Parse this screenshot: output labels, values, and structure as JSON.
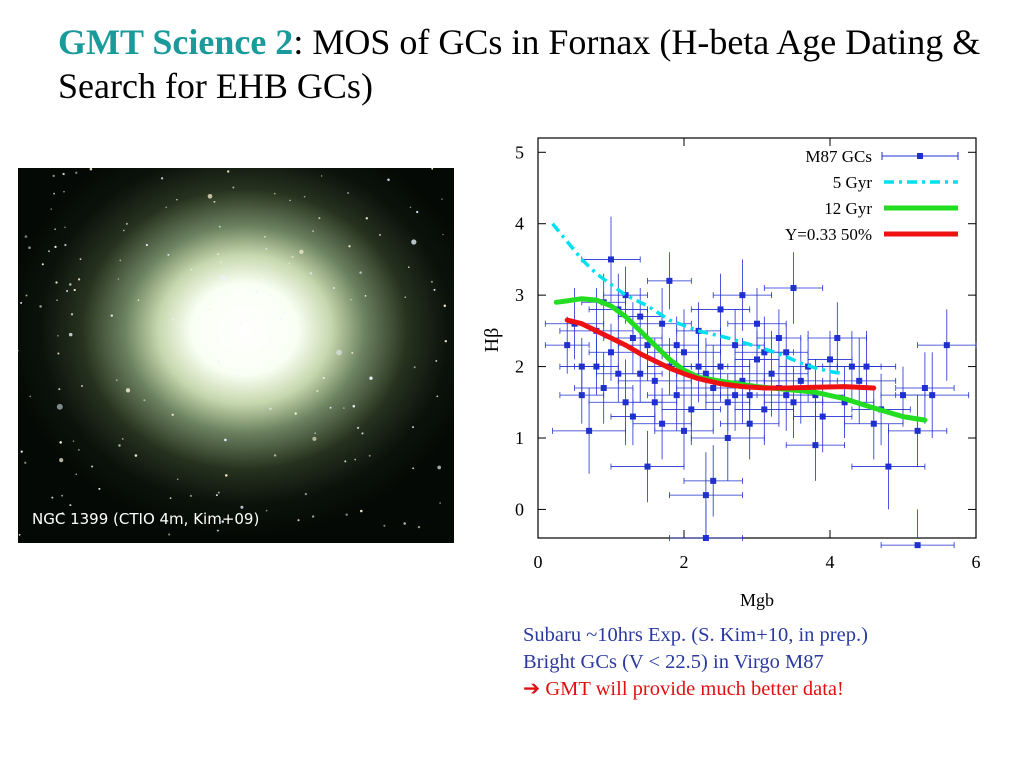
{
  "title": {
    "accent": "GMT Science 2",
    "rest": ": MOS of GCs in Fornax (H-beta Age Dating & Search for EHB GCs)"
  },
  "galaxy": {
    "caption": "NGC 1399 (CTIO 4m, Kim+09)"
  },
  "notes": {
    "line1": "Subaru ~10hrs Exp. (S. Kim+10, in prep.)",
    "line2": "Bright GCs (V < 22.5) in Virgo M87",
    "arrow": "➔",
    "line3": "GMT will provide much better data!"
  },
  "colors": {
    "accent": "#1a9a9a",
    "notes_text": "#2b3aa0",
    "notes_highlight": "#e01010",
    "points": "#1f2fd0",
    "gyr5": "#00e0f0",
    "gyr12": "#22dd22",
    "y033": "#ee1111"
  },
  "chart_data": {
    "type": "scatter",
    "xlabel": "Mgb",
    "ylabel": "Hβ",
    "xlim": [
      0,
      6
    ],
    "ylim": [
      -0.4,
      5.2
    ],
    "xticks": [
      0,
      2,
      4,
      6
    ],
    "yticks": [
      0,
      1,
      2,
      3,
      4,
      5
    ],
    "legend_position": "top-right",
    "series": [
      {
        "name": "M87 GCs",
        "kind": "points",
        "color": "#1f2fd0",
        "points": [
          [
            0.5,
            2.6,
            0.4,
            0.5
          ],
          [
            0.6,
            2.0,
            0.3,
            0.4
          ],
          [
            0.8,
            2.5,
            0.5,
            0.6
          ],
          [
            0.9,
            1.7,
            0.4,
            0.5
          ],
          [
            1.0,
            2.2,
            0.3,
            0.4
          ],
          [
            1.1,
            2.8,
            0.4,
            0.5
          ],
          [
            1.2,
            1.5,
            0.5,
            0.6
          ],
          [
            1.3,
            2.4,
            0.4,
            0.5
          ],
          [
            1.4,
            1.9,
            0.3,
            0.4
          ],
          [
            1.5,
            2.3,
            0.4,
            0.5
          ],
          [
            1.6,
            1.8,
            0.5,
            0.6
          ],
          [
            1.7,
            2.6,
            0.4,
            0.5
          ],
          [
            1.8,
            2.0,
            0.3,
            0.4
          ],
          [
            1.9,
            1.6,
            0.4,
            0.5
          ],
          [
            2.0,
            2.2,
            0.5,
            0.6
          ],
          [
            2.1,
            1.4,
            0.4,
            0.5
          ],
          [
            2.2,
            2.5,
            0.3,
            0.4
          ],
          [
            2.3,
            1.9,
            0.4,
            0.5
          ],
          [
            2.4,
            1.7,
            0.5,
            0.6
          ],
          [
            2.5,
            2.0,
            0.4,
            0.5
          ],
          [
            2.6,
            1.5,
            0.3,
            0.4
          ],
          [
            2.7,
            2.3,
            0.4,
            0.5
          ],
          [
            2.8,
            1.8,
            0.5,
            0.6
          ],
          [
            2.9,
            1.6,
            0.4,
            0.5
          ],
          [
            3.0,
            2.1,
            0.3,
            0.4
          ],
          [
            3.1,
            1.4,
            0.4,
            0.5
          ],
          [
            3.2,
            1.9,
            0.5,
            0.6
          ],
          [
            3.3,
            1.7,
            0.4,
            0.5
          ],
          [
            3.4,
            2.2,
            0.3,
            0.4
          ],
          [
            3.5,
            1.5,
            0.4,
            0.5
          ],
          [
            3.6,
            1.8,
            0.5,
            0.6
          ],
          [
            3.8,
            1.6,
            0.4,
            0.5
          ],
          [
            4.0,
            2.1,
            0.3,
            0.4
          ],
          [
            4.2,
            1.5,
            0.4,
            0.5
          ],
          [
            4.4,
            1.8,
            0.5,
            0.6
          ],
          [
            4.6,
            1.2,
            0.4,
            0.5
          ],
          [
            4.8,
            0.6,
            0.5,
            0.6
          ],
          [
            5.0,
            1.6,
            0.3,
            0.4
          ],
          [
            5.2,
            1.1,
            0.4,
            0.5
          ],
          [
            5.4,
            1.6,
            0.5,
            0.6
          ],
          [
            0.7,
            1.1,
            0.5,
            0.6
          ],
          [
            1.0,
            3.5,
            0.4,
            0.6
          ],
          [
            1.5,
            0.6,
            0.5,
            0.5
          ],
          [
            2.3,
            0.2,
            0.5,
            0.6
          ],
          [
            2.4,
            0.4,
            0.4,
            0.5
          ],
          [
            2.6,
            1.0,
            0.5,
            0.6
          ],
          [
            3.5,
            3.1,
            0.4,
            0.5
          ],
          [
            3.8,
            0.9,
            0.4,
            0.5
          ],
          [
            4.5,
            2.0,
            0.4,
            0.5
          ],
          [
            5.6,
            2.3,
            0.4,
            0.5
          ],
          [
            5.2,
            -0.5,
            0.5,
            0.5
          ],
          [
            2.3,
            -0.4,
            0.5,
            0.5
          ],
          [
            1.8,
            3.2,
            0.3,
            0.4
          ],
          [
            2.8,
            3.0,
            0.4,
            0.5
          ],
          [
            3.0,
            2.6,
            0.4,
            0.5
          ],
          [
            3.3,
            2.4,
            0.3,
            0.4
          ],
          [
            0.9,
            2.9,
            0.3,
            0.4
          ],
          [
            1.3,
            1.3,
            0.3,
            0.4
          ],
          [
            1.1,
            1.9,
            0.3,
            0.4
          ],
          [
            2.0,
            1.1,
            0.4,
            0.5
          ],
          [
            4.1,
            2.4,
            0.4,
            0.5
          ],
          [
            4.7,
            1.4,
            0.4,
            0.5
          ],
          [
            0.6,
            1.6,
            0.3,
            0.4
          ],
          [
            1.7,
            1.2,
            0.4,
            0.5
          ],
          [
            3.7,
            2.0,
            0.4,
            0.5
          ],
          [
            2.5,
            2.8,
            0.4,
            0.5
          ],
          [
            3.9,
            1.3,
            0.4,
            0.5
          ],
          [
            1.4,
            2.7,
            0.3,
            0.4
          ],
          [
            2.9,
            1.2,
            0.4,
            0.5
          ],
          [
            0.4,
            2.3,
            0.3,
            0.4
          ],
          [
            1.2,
            3.0,
            0.3,
            0.4
          ],
          [
            2.2,
            2.0,
            0.4,
            0.5
          ],
          [
            3.1,
            2.2,
            0.4,
            0.5
          ],
          [
            4.3,
            2.0,
            0.4,
            0.5
          ],
          [
            5.3,
            1.7,
            0.4,
            0.5
          ],
          [
            1.6,
            1.5,
            0.3,
            0.4
          ],
          [
            2.7,
            1.6,
            0.4,
            0.5
          ],
          [
            0.8,
            2.0,
            0.3,
            0.4
          ],
          [
            1.9,
            2.3,
            0.3,
            0.4
          ],
          [
            3.4,
            1.6,
            0.4,
            0.5
          ]
        ]
      },
      {
        "name": "5 Gyr",
        "kind": "line",
        "style": "dashdot",
        "color": "#00e0f0",
        "x": [
          0.2,
          0.4,
          0.6,
          0.8,
          1.0,
          1.2,
          1.5,
          1.8,
          2.2,
          2.6,
          3.0,
          3.3,
          3.6,
          3.8,
          4.0,
          4.2
        ],
        "y": [
          4.0,
          3.75,
          3.5,
          3.3,
          3.15,
          3.0,
          2.85,
          2.65,
          2.5,
          2.4,
          2.28,
          2.18,
          2.05,
          1.98,
          1.93,
          1.9
        ]
      },
      {
        "name": "12 Gyr",
        "kind": "line",
        "style": "solid",
        "color": "#22dd22",
        "x": [
          0.25,
          0.4,
          0.6,
          0.8,
          1.0,
          1.2,
          1.4,
          1.6,
          1.8,
          2.0,
          2.2,
          2.6,
          3.0,
          3.4,
          3.8,
          4.2,
          4.6,
          5.0,
          5.3
        ],
        "y": [
          2.9,
          2.92,
          2.95,
          2.93,
          2.85,
          2.7,
          2.5,
          2.3,
          2.1,
          1.95,
          1.85,
          1.78,
          1.72,
          1.68,
          1.64,
          1.55,
          1.42,
          1.3,
          1.25
        ]
      },
      {
        "name": "Y=0.33 50%",
        "kind": "line",
        "style": "solid",
        "color": "#ee1111",
        "x": [
          0.4,
          0.6,
          0.8,
          1.0,
          1.2,
          1.4,
          1.6,
          1.8,
          2.0,
          2.2,
          2.5,
          2.8,
          3.1,
          3.4,
          3.8,
          4.2,
          4.6
        ],
        "y": [
          2.65,
          2.6,
          2.5,
          2.4,
          2.3,
          2.18,
          2.08,
          1.98,
          1.9,
          1.83,
          1.76,
          1.72,
          1.7,
          1.7,
          1.71,
          1.72,
          1.7
        ]
      }
    ]
  }
}
